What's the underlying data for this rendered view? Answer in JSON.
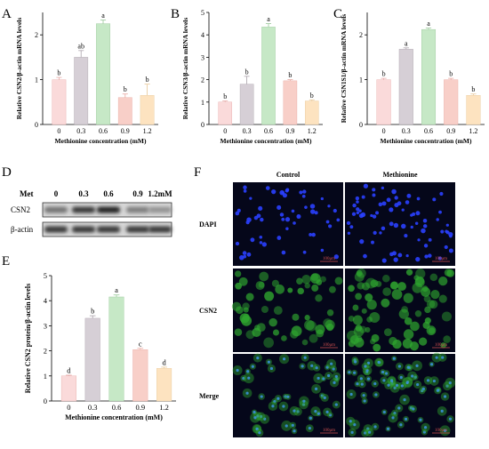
{
  "panels": {
    "A": {
      "letter": "A"
    },
    "B": {
      "letter": "B"
    },
    "C": {
      "letter": "C"
    },
    "D": {
      "letter": "D"
    },
    "E": {
      "letter": "E"
    },
    "F": {
      "letter": "F"
    }
  },
  "colors": {
    "bar_0": "#fadada",
    "bar_0_3": "#d6cfd6",
    "bar_0_6": "#c6e8c6",
    "bar_0_9": "#f8cfc8",
    "bar_1_2": "#fde3c0",
    "micro_bg": "#05071a",
    "dapi": "#2a40ff",
    "gfp": "#2fa62f"
  },
  "chart_data": [
    {
      "type": "bar",
      "panel": "A",
      "categories": [
        "0",
        "0.3",
        "0.6",
        "0.9",
        "1.2"
      ],
      "values": [
        1.0,
        1.5,
        2.25,
        0.6,
        0.65
      ],
      "errors": [
        0.05,
        0.15,
        0.08,
        0.08,
        0.25
      ],
      "significance": [
        "b",
        "ab",
        "a",
        "b",
        "b"
      ],
      "ylim": [
        0,
        2.5
      ],
      "yticks": [
        "0",
        "1",
        "2"
      ],
      "ytick_values": [
        0,
        1,
        2
      ],
      "ylabel": "Relative CSN2/β-actin mRNA levels",
      "xlabel": "Methionine concentration (mM)"
    },
    {
      "type": "bar",
      "panel": "B",
      "categories": [
        "0",
        "0.3",
        "0.6",
        "0.9",
        "1.2"
      ],
      "values": [
        1.0,
        1.8,
        4.35,
        1.95,
        1.05
      ],
      "errors": [
        0.05,
        0.35,
        0.15,
        0.05,
        0.05
      ],
      "significance": [
        "b",
        "b",
        "a",
        "b",
        "b"
      ],
      "ylim": [
        0,
        5
      ],
      "yticks": [
        "0",
        "1",
        "2",
        "3",
        "4",
        "5"
      ],
      "ytick_values": [
        0,
        1,
        2,
        3,
        4,
        5
      ],
      "ylabel": "Relative CSN3/β-actin mRNA levels",
      "xlabel": "Methionine concentration (mM)"
    },
    {
      "type": "bar",
      "panel": "C",
      "categories": [
        "0",
        "0.3",
        "0.6",
        "0.9",
        "1.2"
      ],
      "values": [
        1.0,
        1.68,
        2.12,
        1.0,
        0.65
      ],
      "errors": [
        0.03,
        0.03,
        0.03,
        0.03,
        0.03
      ],
      "significance": [
        "b",
        "a",
        "a",
        "b",
        "b"
      ],
      "ylim": [
        0,
        2.5
      ],
      "yticks": [
        "0",
        "1",
        "2"
      ],
      "ytick_values": [
        0,
        1,
        2
      ],
      "ylabel": "Relative CSN1S1/β-actin mRNA levels",
      "xlabel": "Methionine concentration (mM)"
    },
    {
      "type": "bar",
      "panel": "E",
      "categories": [
        "0",
        "0.3",
        "0.6",
        "0.9",
        "1.2"
      ],
      "values": [
        1.0,
        3.3,
        4.15,
        2.05,
        1.3
      ],
      "errors": [
        0.03,
        0.1,
        0.08,
        0.05,
        0.05
      ],
      "significance": [
        "d",
        "b",
        "a",
        "c",
        "d"
      ],
      "ylim": [
        0,
        5
      ],
      "yticks": [
        "0",
        "1",
        "2",
        "3",
        "4",
        "5"
      ],
      "ytick_values": [
        0,
        1,
        2,
        3,
        4,
        5
      ],
      "ylabel": "Relative CSN2 protein/β-actin levels",
      "xlabel": "Methionine concentration (mM)"
    }
  ],
  "blot": {
    "header_label": "Met",
    "lanes": [
      "0",
      "0.3",
      "0.6",
      "0.9",
      "1.2mM"
    ],
    "rows": [
      {
        "label": "CSN2",
        "intensities": [
          0.55,
          0.85,
          0.95,
          0.5,
          0.4
        ]
      },
      {
        "label": "β-actin",
        "intensities": [
          0.85,
          0.85,
          0.85,
          0.85,
          0.85
        ]
      }
    ]
  },
  "micrographs": {
    "columns": [
      "Control",
      "Methionine"
    ],
    "rows": [
      "DAPI",
      "CSN2",
      "Merge"
    ],
    "scale_bar": "100μm"
  }
}
